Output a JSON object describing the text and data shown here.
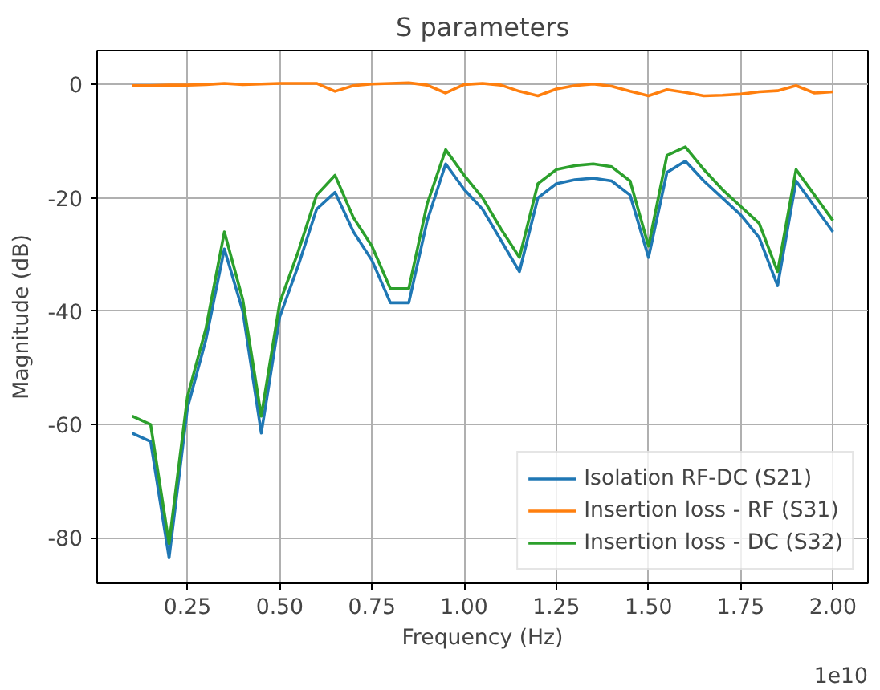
{
  "chart_data": {
    "type": "line",
    "title": "S parameters",
    "xlabel": "Frequency (Hz)",
    "ylabel": "Magnitude (dB)",
    "x": [
      0.1,
      0.15,
      0.2,
      0.25,
      0.3,
      0.35,
      0.4,
      0.45,
      0.5,
      0.55,
      0.6,
      0.65,
      0.7,
      0.75,
      0.8,
      0.85,
      0.9,
      0.95,
      1.0,
      1.05,
      1.1,
      1.15,
      1.2,
      1.25,
      1.3,
      1.35,
      1.4,
      1.45,
      1.5,
      1.55,
      1.6,
      1.65,
      1.7,
      1.75,
      1.8,
      1.85,
      1.9,
      1.95,
      2.0
    ],
    "series": [
      {
        "name": "Isolation RF-DC (S21)",
        "color": "#1f77b4",
        "values": [
          -61.5,
          -63,
          -83.5,
          -57,
          -45,
          -29,
          -40,
          -61.5,
          -41,
          -32,
          -22,
          -19,
          -26,
          -31,
          -38.5,
          -38.5,
          -24,
          -14,
          -18.5,
          -22,
          -27.5,
          -33,
          -20,
          -17.5,
          -16.8,
          -16.5,
          -17,
          -19.5,
          -30.5,
          -15.5,
          -13.5,
          -17,
          -20,
          -23,
          -27,
          -35.5,
          -17,
          -21.5,
          -26
        ]
      },
      {
        "name": "Insertion loss - RF (S31)",
        "color": "#ff7f0e",
        "values": [
          -0.2,
          -0.2,
          -0.1,
          -0.1,
          0,
          0.2,
          0,
          0.1,
          0.2,
          0.2,
          0.2,
          -1.2,
          -0.2,
          0.1,
          0.2,
          0.3,
          -0.1,
          -1.5,
          0,
          0.2,
          -0.1,
          -1.2,
          -2,
          -0.8,
          -0.2,
          0.1,
          -0.3,
          -1.2,
          -2,
          -0.9,
          -1.4,
          -2,
          -1.9,
          -1.7,
          -1.3,
          -1.1,
          -0.2,
          -1.5,
          -1.3
        ]
      },
      {
        "name": "Insertion loss - DC (S32)",
        "color": "#2ca02c",
        "values": [
          -58.5,
          -60,
          -81,
          -55,
          -43,
          -26,
          -38,
          -58.5,
          -38.5,
          -29.5,
          -19.5,
          -16,
          -23.5,
          -28.5,
          -36,
          -36,
          -21,
          -11.5,
          -16,
          -20,
          -25.5,
          -30.5,
          -17.5,
          -15,
          -14.3,
          -14,
          -14.5,
          -17,
          -28.5,
          -12.5,
          -11,
          -15,
          -18.5,
          -21.5,
          -24.5,
          -33,
          -15,
          -19.5,
          -24
        ]
      }
    ],
    "xlim": [
      0.005,
      2.095
    ],
    "ylim": [
      -88,
      6
    ],
    "xticks": [
      {
        "value": 0.25,
        "label": "0.25"
      },
      {
        "value": 0.5,
        "label": "0.50"
      },
      {
        "value": 0.75,
        "label": "0.75"
      },
      {
        "value": 1.0,
        "label": "1.00"
      },
      {
        "value": 1.25,
        "label": "1.25"
      },
      {
        "value": 1.5,
        "label": "1.50"
      },
      {
        "value": 1.75,
        "label": "1.75"
      },
      {
        "value": 2.0,
        "label": "2.00"
      }
    ],
    "yticks": [
      -80,
      -60,
      -40,
      -20,
      0
    ],
    "annotations": [
      "1e10"
    ],
    "grid": true,
    "legend": "bottom right",
    "marker": "none",
    "line_style": "solid"
  }
}
